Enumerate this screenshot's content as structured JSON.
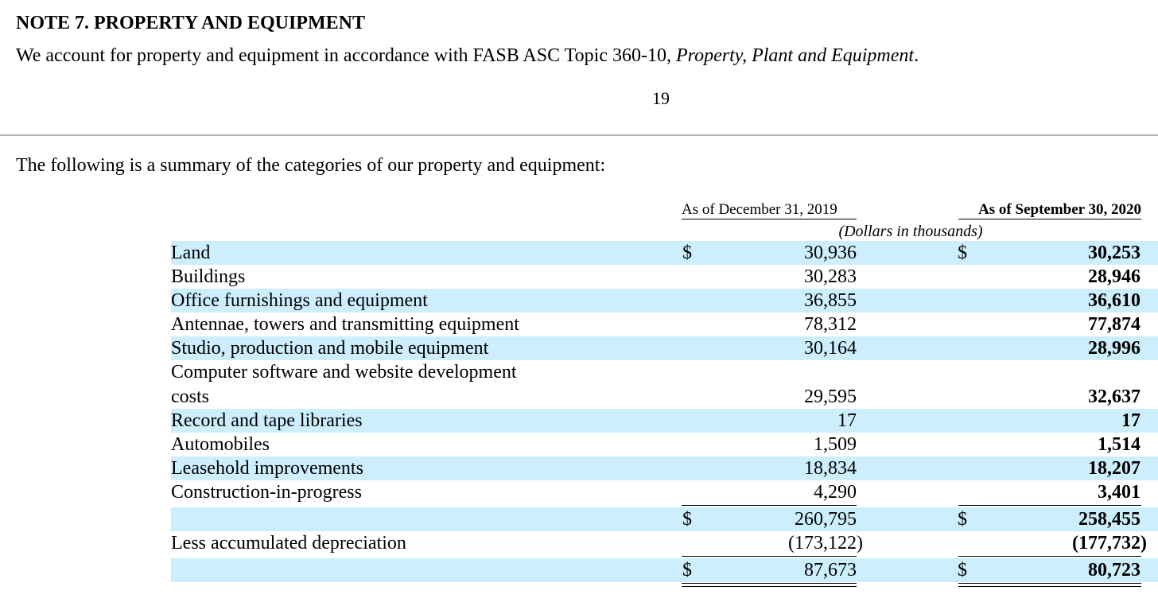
{
  "note": {
    "title": "NOTE 7. PROPERTY AND EQUIPMENT",
    "intro_text": "We account for property and equipment in accordance with FASB ASC Topic 360-10, ",
    "intro_italic": "Property, Plant and Equipment",
    "intro_end": ".",
    "page_number": "19"
  },
  "summary_text": "The following is a summary of the categories of our property and equipment:",
  "table": {
    "col1_header": "As of December 31, 2019",
    "col2_header": "As of September 30, 2020",
    "units": "(Dollars in thousands)",
    "currency": "$",
    "rows": [
      {
        "label": "Land",
        "v2019": "30,936",
        "v2020": "30,253"
      },
      {
        "label": "Buildings",
        "v2019": "30,283",
        "v2020": "28,946"
      },
      {
        "label": "Office furnishings and equipment",
        "v2019": "36,855",
        "v2020": "36,610"
      },
      {
        "label": "Antennae, towers and transmitting equipment",
        "v2019": "78,312",
        "v2020": "77,874"
      },
      {
        "label": "Studio, production and mobile equipment",
        "v2019": "30,164",
        "v2020": "28,996"
      },
      {
        "label": "Computer software and website development",
        "label2": "costs",
        "v2019": "29,595",
        "v2020": "32,637"
      },
      {
        "label": "Record and tape libraries",
        "v2019": "17",
        "v2020": "17"
      },
      {
        "label": "Automobiles",
        "v2019": "1,509",
        "v2020": "1,514"
      },
      {
        "label": "Leasehold improvements",
        "v2019": "18,834",
        "v2020": "18,207"
      },
      {
        "label": "Construction-in-progress",
        "v2019": "4,290",
        "v2020": "3,401"
      }
    ],
    "subtotal": {
      "v2019": "260,795",
      "v2020": "258,455"
    },
    "depreciation": {
      "label": "Less accumulated depreciation",
      "v2019": "(173,122)",
      "v2020": "(177,732)"
    },
    "net": {
      "v2019": "87,673",
      "v2020": "80,723"
    }
  }
}
